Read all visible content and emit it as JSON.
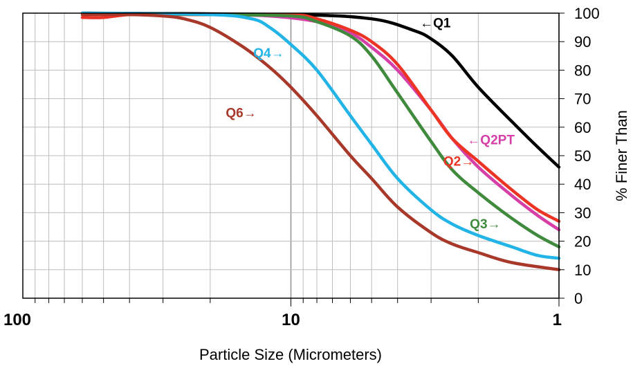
{
  "chart_data": {
    "type": "line",
    "title": "",
    "xlabel": "Particle Size (Micrometers)",
    "ylabel": "% Finer Than",
    "x_scale": "log",
    "x_reversed": true,
    "xlim": [
      100,
      1
    ],
    "ylim": [
      0,
      100
    ],
    "x_tick_labels": [
      "100",
      "10",
      "1"
    ],
    "y_tick_labels": [
      "0",
      "10",
      "20",
      "30",
      "40",
      "50",
      "60",
      "70",
      "80",
      "90",
      "100"
    ],
    "grid": true,
    "legend": "inline labels with arrows",
    "series": [
      {
        "name": "Q1",
        "color": "#000000",
        "label_text": "←Q1",
        "points": [
          [
            60,
            100
          ],
          [
            10,
            99.5
          ],
          [
            5,
            98
          ],
          [
            3.5,
            94
          ],
          [
            3,
            91
          ],
          [
            2.5,
            85
          ],
          [
            2,
            74
          ],
          [
            1.5,
            62
          ],
          [
            1.2,
            53
          ],
          [
            1,
            46
          ]
        ]
      },
      {
        "name": "Q2PT",
        "color": "#d63fa6",
        "label_text": "←Q2PT",
        "points": [
          [
            60,
            100
          ],
          [
            20,
            99.5
          ],
          [
            12,
            99
          ],
          [
            8,
            97
          ],
          [
            6,
            93
          ],
          [
            5,
            88
          ],
          [
            4,
            80
          ],
          [
            3,
            66
          ],
          [
            2.5,
            56
          ],
          [
            2,
            46
          ],
          [
            1.5,
            36
          ],
          [
            1.2,
            29
          ],
          [
            1,
            24
          ]
        ]
      },
      {
        "name": "Q2",
        "color": "#ec3425",
        "label_text": "Q2→",
        "points": [
          [
            60,
            98.5
          ],
          [
            50,
            98.5
          ],
          [
            40,
            99.5
          ],
          [
            30,
            99.5
          ],
          [
            20,
            99.5
          ],
          [
            10,
            99.5
          ],
          [
            8,
            98
          ],
          [
            6,
            94
          ],
          [
            5,
            90
          ],
          [
            4,
            82
          ],
          [
            3,
            66
          ],
          [
            2.5,
            56
          ],
          [
            2,
            48
          ],
          [
            1.5,
            38
          ],
          [
            1.2,
            31
          ],
          [
            1,
            27
          ]
        ]
      },
      {
        "name": "Q3",
        "color": "#3f8a3c",
        "label_text": "Q3→",
        "points": [
          [
            60,
            100
          ],
          [
            20,
            99.5
          ],
          [
            10,
            99
          ],
          [
            8,
            97
          ],
          [
            6,
            92
          ],
          [
            5,
            85
          ],
          [
            4,
            72
          ],
          [
            3,
            55
          ],
          [
            2.5,
            45
          ],
          [
            2,
            37
          ],
          [
            1.5,
            28
          ],
          [
            1.2,
            22
          ],
          [
            1,
            18
          ]
        ]
      },
      {
        "name": "Q4",
        "color": "#22b4e6",
        "label_text": "Q4→",
        "points": [
          [
            60,
            100
          ],
          [
            20,
            99.5
          ],
          [
            14,
            98
          ],
          [
            12,
            95
          ],
          [
            10,
            89
          ],
          [
            8,
            80
          ],
          [
            6,
            64
          ],
          [
            5,
            54
          ],
          [
            4,
            42
          ],
          [
            3,
            31
          ],
          [
            2.5,
            26
          ],
          [
            2,
            22
          ],
          [
            1.5,
            18
          ],
          [
            1.2,
            15
          ],
          [
            1,
            14
          ]
        ]
      },
      {
        "name": "Q6",
        "color": "#a8382a",
        "label_text": "Q6→",
        "points": [
          [
            60,
            99.5
          ],
          [
            40,
            99.5
          ],
          [
            30,
            99
          ],
          [
            25,
            98
          ],
          [
            20,
            95
          ],
          [
            15,
            88
          ],
          [
            12,
            81
          ],
          [
            10,
            74
          ],
          [
            8,
            64
          ],
          [
            6,
            50
          ],
          [
            5,
            42
          ],
          [
            4,
            32
          ],
          [
            3,
            23
          ],
          [
            2.5,
            19
          ],
          [
            2,
            16
          ],
          [
            1.5,
            12.5
          ],
          [
            1,
            10
          ]
        ]
      }
    ]
  }
}
